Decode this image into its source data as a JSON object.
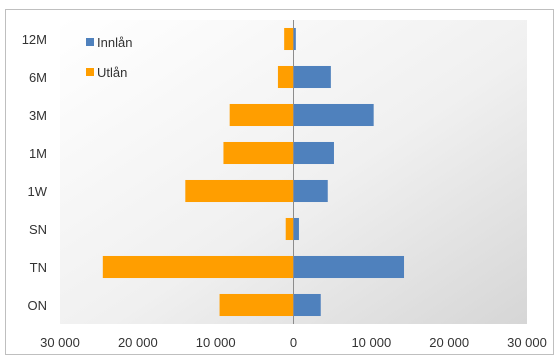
{
  "chart_data": {
    "type": "bar",
    "orientation": "horizontal",
    "categories": [
      "ON",
      "TN",
      "SN",
      "1W",
      "1M",
      "3M",
      "6M",
      "12M"
    ],
    "series": [
      {
        "name": "Innlån",
        "color": "#4f81bd",
        "values": [
          3500,
          14200,
          700,
          4400,
          5200,
          10300,
          4800,
          300
        ]
      },
      {
        "name": "Utlån",
        "color": "#ff9e00",
        "values": [
          -9500,
          -24500,
          -1000,
          -13900,
          -9000,
          -8200,
          -2000,
          -1200
        ]
      }
    ],
    "xlim": [
      -30000,
      30000
    ],
    "xticks": [
      -30000,
      -20000,
      -10000,
      0,
      10000,
      20000,
      30000
    ],
    "xtick_labels": [
      "30 000",
      "20 000",
      "10 000",
      "0",
      "10 000",
      "20 000",
      "30 000"
    ],
    "legend_position": "top-left-inside",
    "grid": false,
    "plot_background": "gradient-light-gray"
  }
}
